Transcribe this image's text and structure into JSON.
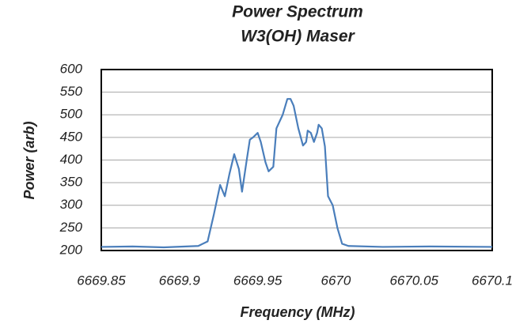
{
  "chart_data": {
    "type": "line",
    "title": "Power Spectrum",
    "subtitle": "W3(OH) Maser",
    "x_label": "Frequency (MHz)",
    "y_label": "Power (arb)",
    "x": [
      6669.85,
      6669.87,
      6669.89,
      6669.912,
      6669.918,
      6669.922,
      6669.926,
      6669.929,
      6669.932,
      6669.935,
      6669.938,
      6669.94,
      6669.943,
      6669.945,
      6669.947,
      6669.95,
      6669.952,
      6669.955,
      6669.957,
      6669.96,
      6669.962,
      6669.966,
      6669.969,
      6669.971,
      6669.973,
      6669.976,
      6669.979,
      6669.981,
      6669.982,
      6669.984,
      6669.986,
      6669.988,
      6669.989,
      6669.991,
      6669.993,
      6669.995,
      6669.998,
      6670.001,
      6670.004,
      6670.008,
      6670.03,
      6670.06,
      6670.1
    ],
    "series": [
      {
        "name": "Power",
        "color": "#4a7ebb",
        "values": [
          208,
          209,
          207,
          210,
          220,
          280,
          345,
          320,
          370,
          413,
          380,
          330,
          400,
          445,
          450,
          460,
          440,
          395,
          375,
          385,
          470,
          500,
          535,
          535,
          520,
          470,
          432,
          440,
          465,
          460,
          440,
          460,
          478,
          470,
          430,
          320,
          300,
          250,
          215,
          210,
          208,
          209,
          208
        ]
      }
    ],
    "xlim": [
      6669.85,
      6670.1
    ],
    "xticks": [
      6669.85,
      6669.9,
      6669.95,
      6670,
      6670.05,
      6670.1
    ],
    "ylim": [
      200,
      600
    ],
    "yticks": [
      200,
      250,
      300,
      350,
      400,
      450,
      500,
      550,
      600
    ],
    "grid": true
  }
}
